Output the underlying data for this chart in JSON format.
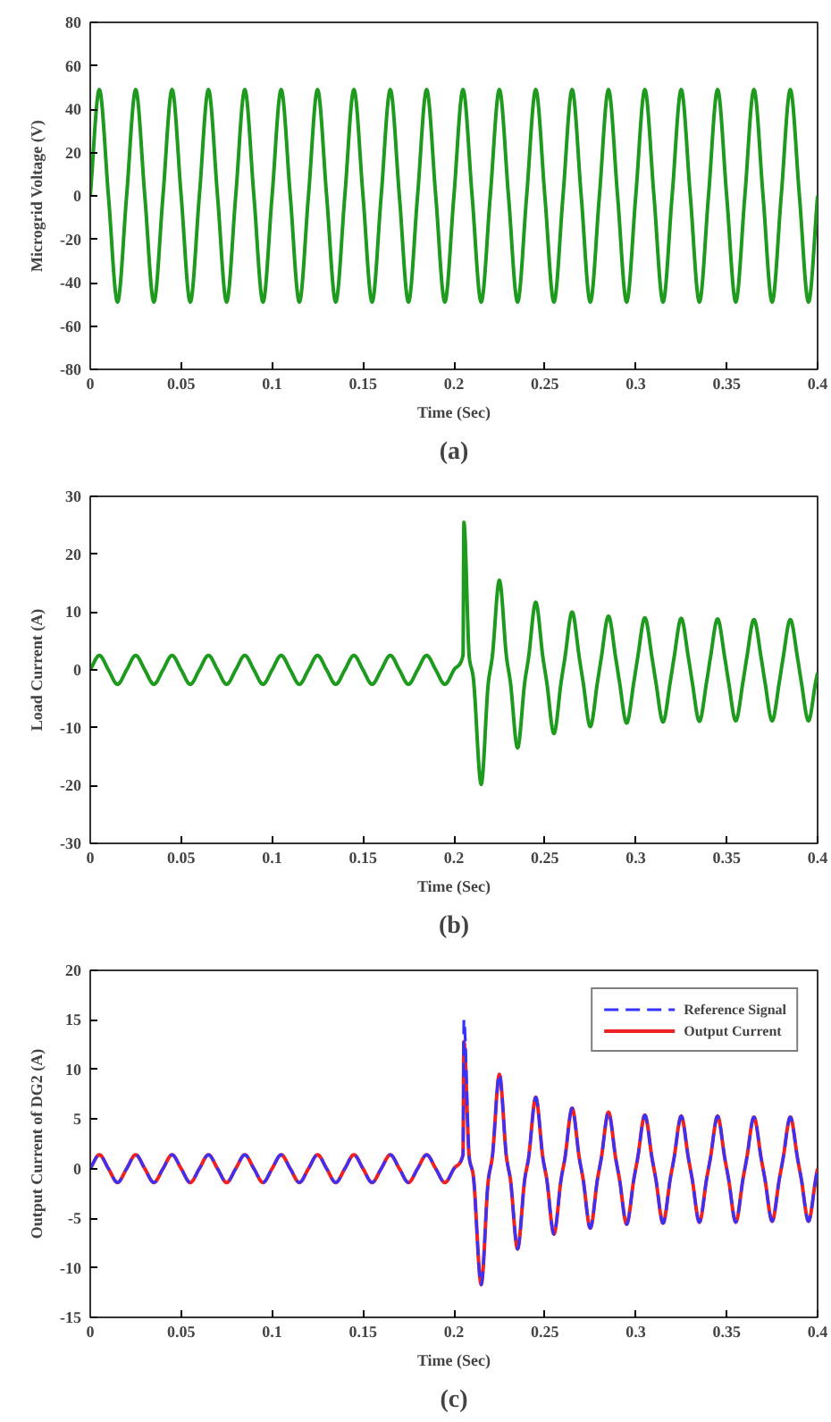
{
  "chart_data": [
    {
      "type": "line",
      "xlabel": "Time (Sec)",
      "ylabel": "Microgrid Voltage (V)",
      "annotations": [
        "(a)"
      ],
      "xlim": [
        0,
        0.4
      ],
      "ylim": [
        -80,
        80
      ],
      "xticks": [
        0,
        0.05,
        0.1,
        0.15,
        0.2,
        0.25,
        0.3,
        0.35,
        0.4
      ],
      "yticks": [
        -80,
        -60,
        -40,
        -20,
        0,
        20,
        40,
        60,
        80
      ],
      "x": [
        0,
        0.005,
        0.01,
        0.015,
        0.02,
        0.025,
        0.03,
        0.035,
        0.04,
        0.045,
        0.05,
        0.055,
        0.06,
        0.065,
        0.07,
        0.075,
        0.08,
        0.085,
        0.09,
        0.095,
        0.1,
        0.105,
        0.11,
        0.115,
        0.12,
        0.125,
        0.13,
        0.135,
        0.14,
        0.145,
        0.15,
        0.155,
        0.16,
        0.165,
        0.17,
        0.175,
        0.18,
        0.185,
        0.19,
        0.195,
        0.2,
        0.205,
        0.21,
        0.215,
        0.22,
        0.225,
        0.23,
        0.235,
        0.24,
        0.245,
        0.25,
        0.255,
        0.26,
        0.265,
        0.27,
        0.275,
        0.28,
        0.285,
        0.29,
        0.295,
        0.3,
        0.305,
        0.31,
        0.315,
        0.32,
        0.325,
        0.33,
        0.335,
        0.34,
        0.345,
        0.35,
        0.355,
        0.36,
        0.365,
        0.37,
        0.375,
        0.38,
        0.385,
        0.39,
        0.395,
        0.4
      ],
      "series": [
        {
          "color": "#1e9a1e",
          "values": [
            0,
            49,
            0,
            -49,
            0,
            49,
            0,
            -49,
            0,
            49,
            0,
            -49,
            0,
            49,
            0,
            -49,
            0,
            49,
            0,
            -49,
            0,
            49,
            0,
            -49,
            0,
            49,
            0,
            -49,
            0,
            49,
            0,
            -49,
            0,
            49,
            0,
            -49,
            0,
            49,
            0,
            -49,
            0,
            49,
            0,
            -49,
            0,
            49,
            0,
            -49,
            0,
            49,
            0,
            -49,
            0,
            49,
            0,
            -49,
            0,
            49,
            0,
            -49,
            0,
            49,
            0,
            -49,
            0,
            49,
            0,
            -49,
            0,
            49,
            0,
            -49,
            0,
            49,
            0,
            -49,
            0,
            49,
            0,
            -49,
            0
          ]
        }
      ]
    },
    {
      "type": "line",
      "xlabel": "Time (Sec)",
      "ylabel": "Load Current (A)",
      "annotations": [
        "(b)"
      ],
      "xlim": [
        0,
        0.4
      ],
      "ylim": [
        -30,
        30
      ],
      "xticks": [
        0,
        0.05,
        0.1,
        0.15,
        0.2,
        0.25,
        0.3,
        0.35,
        0.4
      ],
      "yticks": [
        -30,
        -20,
        -10,
        0,
        10,
        20,
        30
      ],
      "x": [
        0,
        0.005,
        0.01,
        0.015,
        0.02,
        0.025,
        0.03,
        0.035,
        0.04,
        0.045,
        0.05,
        0.055,
        0.06,
        0.065,
        0.07,
        0.075,
        0.08,
        0.085,
        0.09,
        0.095,
        0.1,
        0.105,
        0.11,
        0.115,
        0.12,
        0.125,
        0.13,
        0.135,
        0.14,
        0.145,
        0.15,
        0.155,
        0.16,
        0.165,
        0.17,
        0.175,
        0.18,
        0.185,
        0.19,
        0.195,
        0.2,
        0.205,
        0.2055,
        0.2085,
        0.2105,
        0.215,
        0.219,
        0.221,
        0.225,
        0.229,
        0.231,
        0.235,
        0.239,
        0.241,
        0.245,
        0.249,
        0.251,
        0.255,
        0.259,
        0.261,
        0.265,
        0.269,
        0.271,
        0.275,
        0.279,
        0.281,
        0.285,
        0.289,
        0.291,
        0.295,
        0.299,
        0.301,
        0.305,
        0.309,
        0.311,
        0.315,
        0.319,
        0.321,
        0.325,
        0.329,
        0.331,
        0.335,
        0.339,
        0.341,
        0.345,
        0.349,
        0.351,
        0.355,
        0.359,
        0.361,
        0.365,
        0.369,
        0.371,
        0.375,
        0.379,
        0.381,
        0.385,
        0.389,
        0.391,
        0.395,
        0.399,
        0.4
      ],
      "series": [
        {
          "color": "#1e9a1e",
          "values": [
            0,
            2.5,
            0,
            -2.5,
            0,
            2.5,
            0,
            -2.5,
            0,
            2.5,
            0,
            -2.5,
            0,
            2.5,
            0,
            -2.5,
            0,
            2.5,
            0,
            -2.5,
            0,
            2.5,
            0,
            -2.5,
            0,
            2.5,
            0,
            -2.5,
            0,
            2.5,
            0,
            -2.5,
            0,
            2.5,
            0,
            -2.5,
            0,
            2.5,
            0,
            -2.5,
            0,
            2.5,
            25.5,
            2,
            -1,
            -19.8,
            -2,
            2,
            15.5,
            2,
            -2,
            -13.5,
            -2,
            2,
            11.7,
            2,
            -2,
            -11,
            -2,
            2,
            10,
            2,
            -2,
            -9.8,
            -2,
            2,
            9.3,
            2,
            -2,
            -9.2,
            -2,
            2,
            9,
            2,
            -2,
            -9,
            -2,
            2,
            8.9,
            2,
            -2,
            -8.9,
            -2,
            2,
            8.8,
            2,
            -2,
            -8.8,
            -2,
            2,
            8.7,
            2,
            -2,
            -8.8,
            -2,
            2,
            8.7,
            2,
            -2,
            -8.8,
            -2,
            -0.5
          ]
        }
      ]
    },
    {
      "type": "line",
      "xlabel": "Time (Sec)",
      "ylabel": "Output Current of DG2 (A)",
      "annotations": [
        "(c)"
      ],
      "xlim": [
        0,
        0.4
      ],
      "ylim": [
        -15,
        20
      ],
      "xticks": [
        0,
        0.05,
        0.1,
        0.15,
        0.2,
        0.25,
        0.3,
        0.35,
        0.4
      ],
      "yticks": [
        -15,
        -10,
        -5,
        0,
        5,
        10,
        15,
        20
      ],
      "legend": "top right",
      "x": [
        0,
        0.005,
        0.01,
        0.015,
        0.02,
        0.025,
        0.03,
        0.035,
        0.04,
        0.045,
        0.05,
        0.055,
        0.06,
        0.065,
        0.07,
        0.075,
        0.08,
        0.085,
        0.09,
        0.095,
        0.1,
        0.105,
        0.11,
        0.115,
        0.12,
        0.125,
        0.13,
        0.135,
        0.14,
        0.145,
        0.15,
        0.155,
        0.16,
        0.165,
        0.17,
        0.175,
        0.18,
        0.185,
        0.19,
        0.195,
        0.2,
        0.205,
        0.2055,
        0.2085,
        0.2105,
        0.215,
        0.219,
        0.221,
        0.225,
        0.229,
        0.231,
        0.235,
        0.239,
        0.241,
        0.245,
        0.249,
        0.251,
        0.255,
        0.259,
        0.261,
        0.265,
        0.269,
        0.271,
        0.275,
        0.279,
        0.281,
        0.285,
        0.289,
        0.291,
        0.295,
        0.299,
        0.301,
        0.305,
        0.309,
        0.311,
        0.315,
        0.319,
        0.321,
        0.325,
        0.329,
        0.331,
        0.335,
        0.339,
        0.341,
        0.345,
        0.349,
        0.351,
        0.355,
        0.359,
        0.361,
        0.365,
        0.369,
        0.371,
        0.375,
        0.379,
        0.381,
        0.385,
        0.389,
        0.391,
        0.395,
        0.399,
        0.4
      ],
      "series": [
        {
          "name": "Reference Signal",
          "color": "#3333ff",
          "line_style": "dashed",
          "values": [
            0,
            1.4,
            0,
            -1.4,
            0,
            1.4,
            0,
            -1.4,
            0,
            1.4,
            0,
            -1.4,
            0,
            1.4,
            0,
            -1.4,
            0,
            1.4,
            0,
            -1.4,
            0,
            1.4,
            0,
            -1.4,
            0,
            1.4,
            0,
            -1.4,
            0,
            1.4,
            0,
            -1.4,
            0,
            1.4,
            0,
            -1.4,
            0,
            1.4,
            0,
            -1.4,
            0,
            1.4,
            15,
            1,
            -0.5,
            -11.7,
            -1,
            1,
            9.5,
            1,
            -1,
            -8.1,
            -1,
            1,
            7.2,
            1,
            -1,
            -6.6,
            -1,
            1,
            6.1,
            1,
            -1,
            -6,
            -1,
            1,
            5.7,
            1,
            -1,
            -5.6,
            -1,
            1,
            5.4,
            1,
            -1,
            -5.5,
            -1,
            1,
            5.3,
            1,
            -1,
            -5.4,
            -1,
            1,
            5.3,
            1,
            -1,
            -5.4,
            -1,
            1,
            5.2,
            1,
            -1,
            -5.3,
            -1,
            1,
            5.2,
            1,
            -1,
            -5.3,
            -1,
            0
          ]
        },
        {
          "name": "Output Current",
          "color": "#ee2222",
          "line_style": "solid",
          "values": [
            0,
            1.4,
            0,
            -1.4,
            0,
            1.4,
            0,
            -1.4,
            0,
            1.4,
            0,
            -1.4,
            0,
            1.4,
            0,
            -1.4,
            0,
            1.4,
            0,
            -1.4,
            0,
            1.4,
            0,
            -1.4,
            0,
            1.4,
            0,
            -1.4,
            0,
            1.4,
            0,
            -1.4,
            0,
            1.4,
            0,
            -1.4,
            0,
            1.4,
            0,
            -1.4,
            0,
            1.4,
            12.8,
            1,
            -0.5,
            -11.7,
            -1,
            1,
            9.5,
            1,
            -1,
            -8.1,
            -1,
            1,
            7.2,
            1,
            -1,
            -6.6,
            -1,
            1,
            6.1,
            1,
            -1,
            -6,
            -1,
            1,
            5.7,
            1,
            -1,
            -5.6,
            -1,
            1,
            5.4,
            1,
            -1,
            -5.5,
            -1,
            1,
            5.3,
            1,
            -1,
            -5.4,
            -1,
            1,
            5.3,
            1,
            -1,
            -5.4,
            -1,
            1,
            5.2,
            1,
            -1,
            -5.3,
            -1,
            1,
            5.2,
            1,
            -1,
            -5.3,
            -1,
            0
          ]
        }
      ]
    }
  ]
}
